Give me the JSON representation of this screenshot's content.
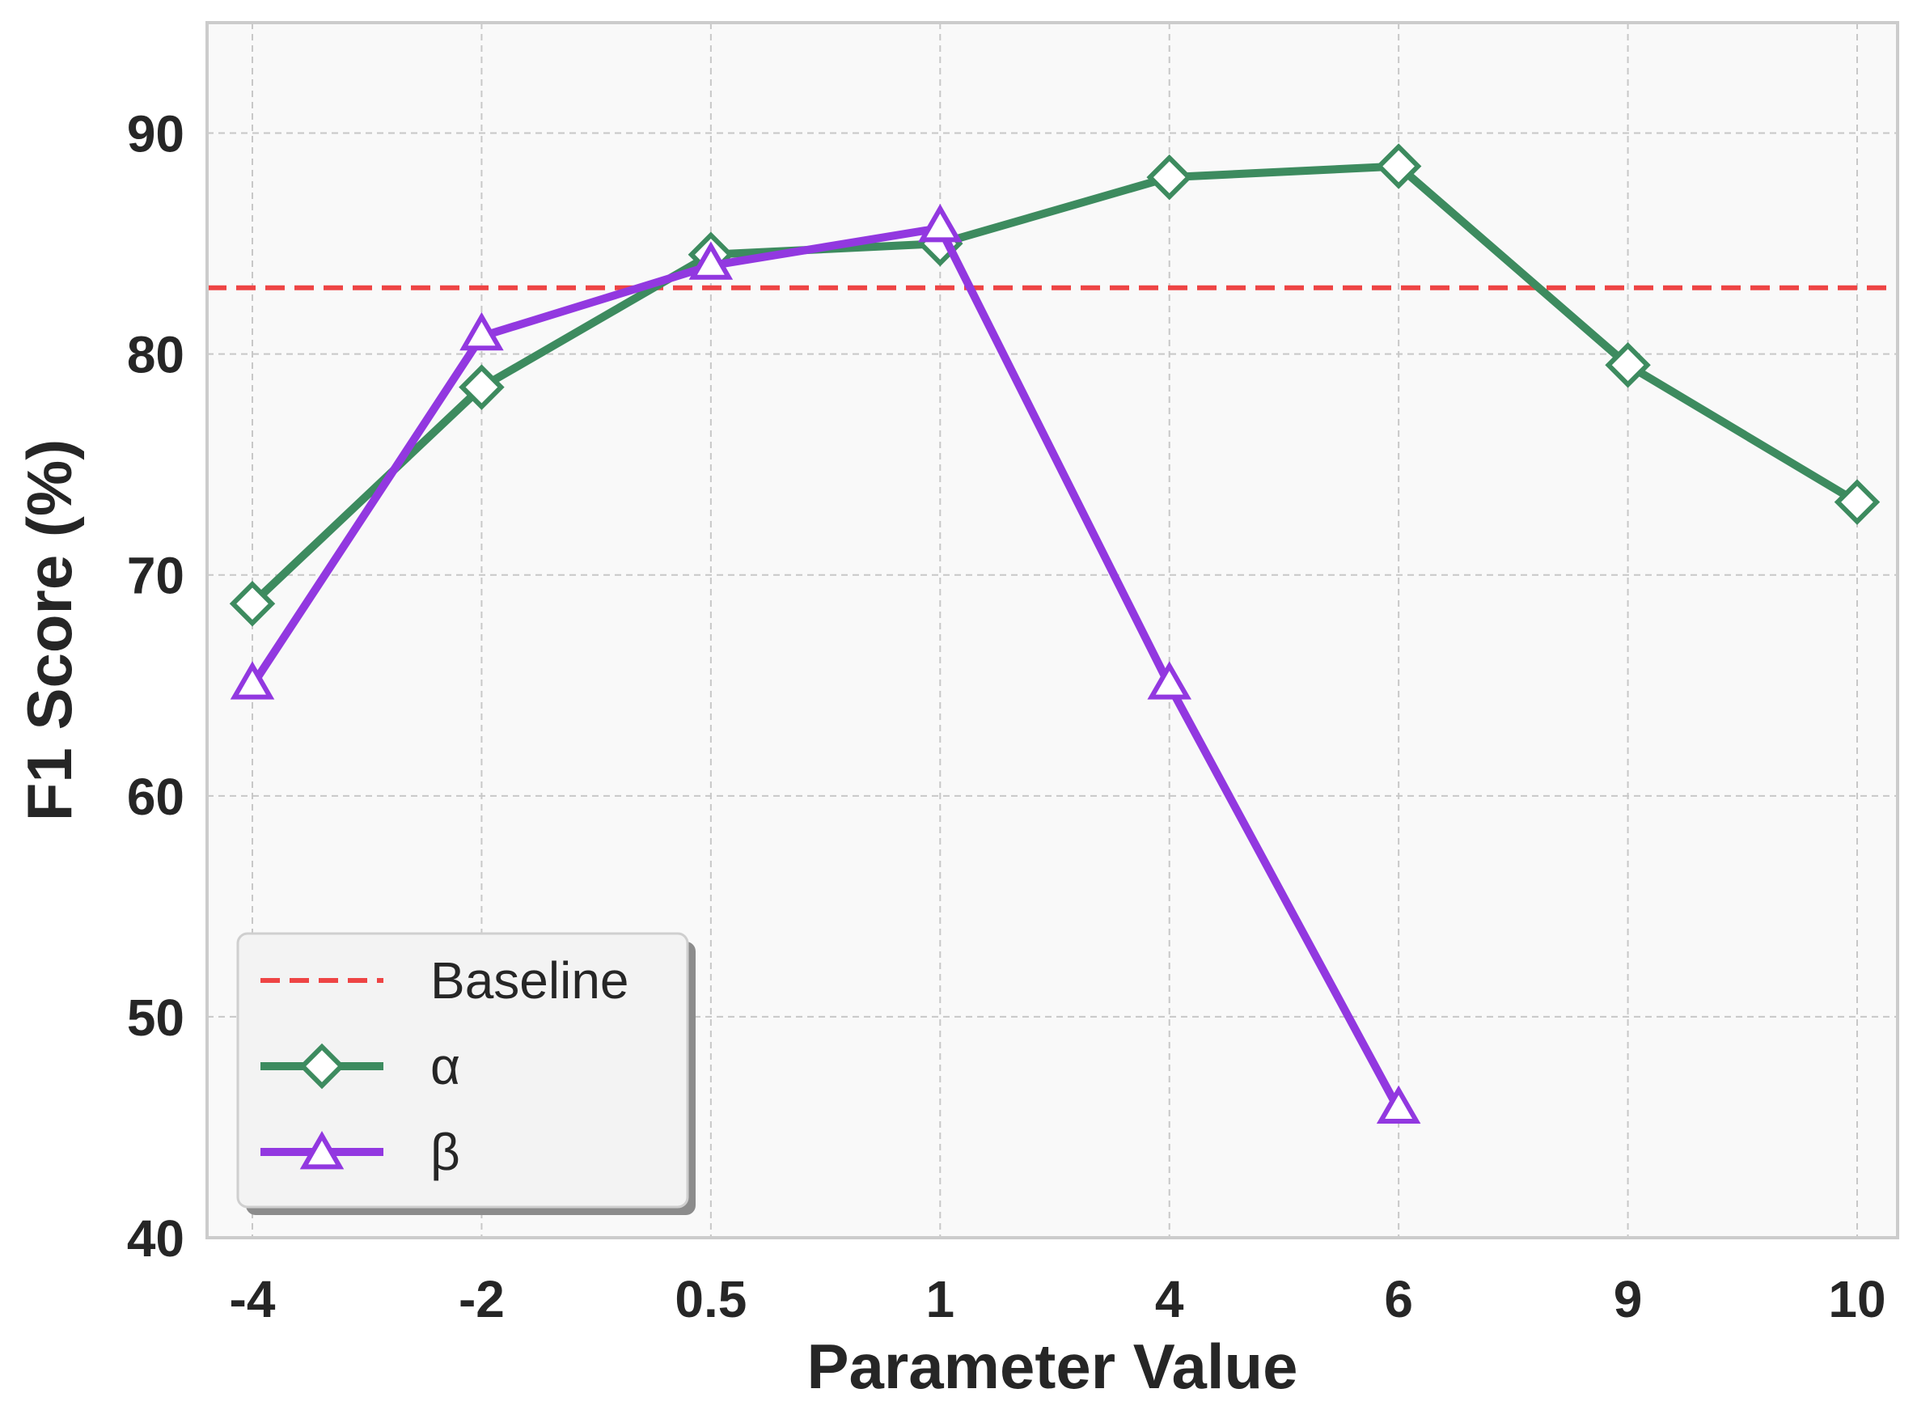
{
  "chart_data": {
    "type": "line",
    "title": "",
    "xlabel": "Parameter Value",
    "ylabel": "F1 Score (%)",
    "categories": [
      "-4",
      "-2",
      "0.5",
      "1",
      "4",
      "6",
      "9",
      "10"
    ],
    "ylim": [
      40,
      95
    ],
    "yticks": [
      "40",
      "50",
      "60",
      "70",
      "80",
      "90"
    ],
    "grid": true,
    "legend_position": "lower-left",
    "baseline": {
      "name": "Baseline",
      "value": 83,
      "color": "#ee4444"
    },
    "series": [
      {
        "name": "α",
        "marker": "diamond",
        "color": "#3d8b5f",
        "values": [
          68.7,
          78.5,
          84.5,
          85.0,
          88.0,
          88.5,
          79.5,
          73.3
        ]
      },
      {
        "name": "β",
        "marker": "triangle",
        "color": "#9238e0",
        "values": [
          65.0,
          80.8,
          84.0,
          85.7,
          65.0,
          45.8,
          null,
          null
        ]
      }
    ]
  }
}
